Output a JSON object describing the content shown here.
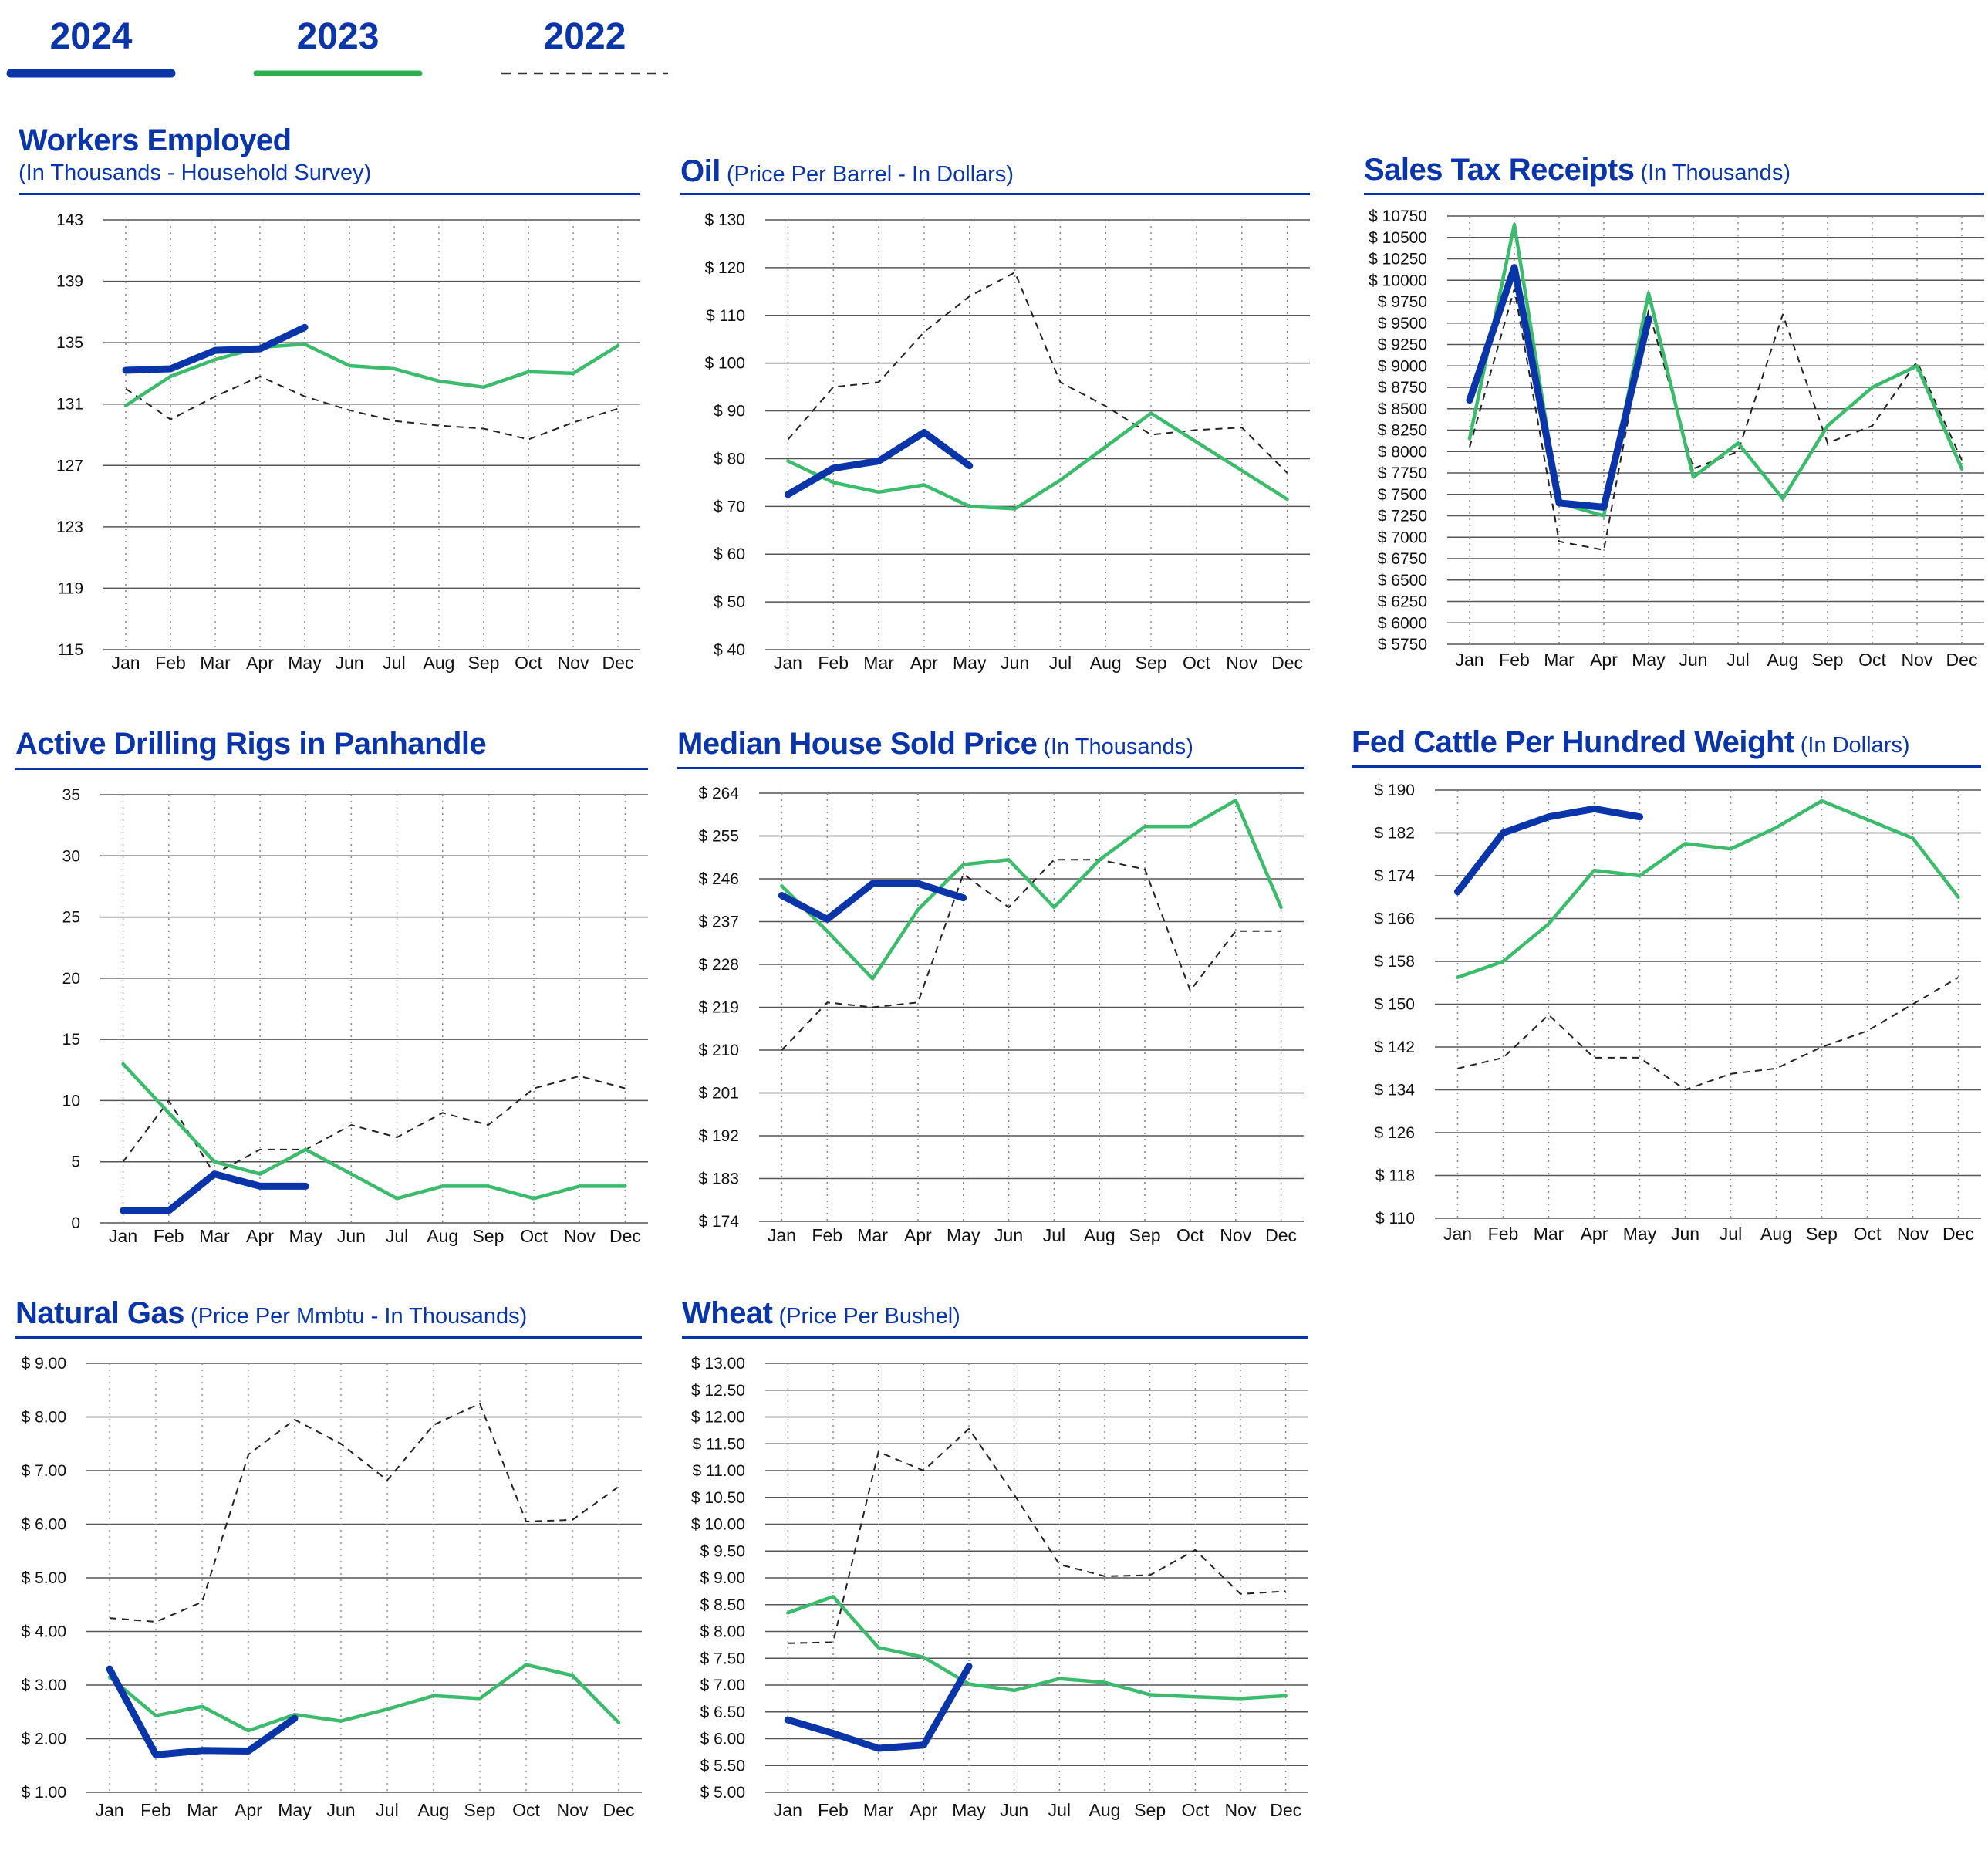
{
  "legend": {
    "items": [
      {
        "label": "2024",
        "color": "#0a35a8",
        "style": "solid-thick"
      },
      {
        "label": "2023",
        "color": "#2eae4f",
        "style": "solid"
      },
      {
        "label": "2022",
        "color": "#333333",
        "style": "dashed"
      }
    ]
  },
  "colors": {
    "y2024": "#0a35a8",
    "y2023": "#3dbb6c",
    "y2022": "#222222",
    "title": "#0a35a8",
    "grid": "#555555"
  },
  "months": [
    "Jan",
    "Feb",
    "Mar",
    "Apr",
    "May",
    "Jun",
    "Jul",
    "Aug",
    "Sep",
    "Oct",
    "Nov",
    "Dec"
  ],
  "chart_data": [
    {
      "id": "workers",
      "type": "line",
      "title": "Workers Employed",
      "subtitle": "(In Thousands - Household Survey)",
      "ylim": [
        115,
        143
      ],
      "yticks": [
        115,
        119,
        123,
        127,
        131,
        135,
        139,
        143
      ],
      "ytick_labels": [
        "115",
        "119",
        "123",
        "127",
        "131",
        "135",
        "139",
        "143"
      ],
      "series": [
        {
          "name": "2024",
          "values": [
            133.2,
            133.3,
            134.5,
            134.6,
            136.0
          ]
        },
        {
          "name": "2023",
          "values": [
            130.9,
            132.8,
            133.9,
            134.7,
            134.9,
            133.5,
            133.3,
            132.5,
            132.1,
            133.1,
            133.0,
            134.8
          ]
        },
        {
          "name": "2022",
          "values": [
            132.0,
            130.0,
            131.5,
            132.8,
            131.5,
            130.6,
            129.9,
            129.6,
            129.4,
            128.7,
            129.8,
            130.7
          ]
        }
      ]
    },
    {
      "id": "oil",
      "type": "line",
      "title": "Oil",
      "subtitle": "(Price Per Barrel - In Dollars)",
      "ylim": [
        40,
        130
      ],
      "yticks": [
        40,
        50,
        60,
        70,
        80,
        90,
        100,
        110,
        120,
        130
      ],
      "ytick_labels": [
        "$  40",
        "$  50",
        "$  60",
        "$  70",
        "$  80",
        "$  90",
        "$ 100",
        "$ 110",
        "$ 120",
        "$ 130"
      ],
      "series": [
        {
          "name": "2024",
          "values": [
            72.5,
            78.0,
            79.5,
            85.5,
            78.5
          ]
        },
        {
          "name": "2023",
          "values": [
            79.5,
            75.0,
            73.0,
            74.5,
            70.0,
            69.5,
            75.5,
            82.5,
            89.5,
            83.5,
            77.5,
            71.5
          ]
        },
        {
          "name": "2022",
          "values": [
            84.0,
            95.0,
            96.0,
            106.5,
            114.0,
            119.0,
            96.0,
            91.0,
            85.0,
            86.0,
            86.5,
            77.0
          ]
        }
      ]
    },
    {
      "id": "salestax",
      "type": "line",
      "title": "Sales Tax Receipts",
      "subtitle": "(In Thousands)",
      "ylim": [
        5750,
        10750
      ],
      "yticks": [
        5750,
        6000,
        6250,
        6500,
        6750,
        7000,
        7250,
        7500,
        7750,
        8000,
        8250,
        8500,
        8750,
        9000,
        9250,
        9500,
        9750,
        10000,
        10250,
        10500,
        10750
      ],
      "ytick_labels": [
        "$  5750",
        "$  6000",
        "$  6250",
        "$  6500",
        "$  6750",
        "$  7000",
        "$  7250",
        "$  7500",
        "$  7750",
        "$  8000",
        "$  8250",
        "$  8500",
        "$  8750",
        "$  9000",
        "$  9250",
        "$  9500",
        "$  9750",
        "$ 10000",
        "$ 10250",
        "$ 10500",
        "$ 10750"
      ],
      "series": [
        {
          "name": "2024",
          "values": [
            8600,
            10150,
            7400,
            7350,
            9550
          ]
        },
        {
          "name": "2023",
          "values": [
            8150,
            10650,
            7400,
            7250,
            9850,
            7700,
            8100,
            7450,
            8300,
            8750,
            9000,
            7800
          ]
        },
        {
          "name": "2022",
          "values": [
            8050,
            9900,
            6950,
            6850,
            9650,
            7800,
            8000,
            9600,
            8100,
            8300,
            9050,
            7900
          ]
        }
      ]
    },
    {
      "id": "rigs",
      "type": "line",
      "title": "Active Drilling Rigs in Panhandle",
      "subtitle": "",
      "ylim": [
        0,
        35
      ],
      "yticks": [
        0,
        5,
        10,
        15,
        20,
        25,
        30,
        35
      ],
      "ytick_labels": [
        "0",
        "5",
        "10",
        "15",
        "20",
        "25",
        "30",
        "35"
      ],
      "series": [
        {
          "name": "2024",
          "values": [
            1,
            1,
            4,
            3,
            3
          ]
        },
        {
          "name": "2023",
          "values": [
            13,
            9,
            5,
            4,
            6,
            4,
            2,
            3,
            3,
            2,
            3,
            3
          ]
        },
        {
          "name": "2022",
          "values": [
            5,
            10,
            4,
            6,
            6,
            8,
            7,
            9,
            8,
            11,
            12,
            11
          ]
        }
      ]
    },
    {
      "id": "house",
      "type": "line",
      "title": "Median House Sold Price",
      "subtitle": "(In Thousands)",
      "ylim": [
        174,
        264
      ],
      "yticks": [
        174,
        183,
        192,
        201,
        210,
        219,
        228,
        237,
        246,
        255,
        264
      ],
      "ytick_labels": [
        "$ 174",
        "$ 183",
        "$ 192",
        "$ 201",
        "$ 210",
        "$ 219",
        "$ 228",
        "$ 237",
        "$ 246",
        "$ 255",
        "$ 264"
      ],
      "series": [
        {
          "name": "2024",
          "values": [
            242.5,
            237.5,
            245.0,
            245.0,
            242.0
          ]
        },
        {
          "name": "2023",
          "values": [
            244.5,
            235.0,
            225.0,
            239.5,
            249.0,
            250.0,
            240.0,
            250.0,
            257.0,
            257.0,
            262.5,
            240.0
          ]
        },
        {
          "name": "2022",
          "values": [
            210.0,
            220.0,
            219.0,
            220.0,
            247.0,
            240.0,
            250.0,
            250.0,
            248.0,
            222.5,
            235.0,
            235.0
          ]
        }
      ]
    },
    {
      "id": "cattle",
      "type": "line",
      "title": "Fed Cattle Per Hundred Weight",
      "subtitle": "(In Dollars)",
      "ylim": [
        110,
        190
      ],
      "yticks": [
        110,
        118,
        126,
        134,
        142,
        150,
        158,
        166,
        174,
        182,
        190
      ],
      "ytick_labels": [
        "$ 110",
        "$ 118",
        "$ 126",
        "$ 134",
        "$ 142",
        "$ 150",
        "$ 158",
        "$ 166",
        "$ 174",
        "$ 182",
        "$ 190"
      ],
      "series": [
        {
          "name": "2024",
          "values": [
            171.0,
            182.0,
            185.0,
            186.5,
            185.0
          ]
        },
        {
          "name": "2023",
          "values": [
            155.0,
            158.0,
            165.0,
            175.0,
            174.0,
            180.0,
            179.0,
            183.0,
            188.0,
            184.5,
            181.0,
            170.0
          ]
        },
        {
          "name": "2022",
          "values": [
            138.0,
            140.0,
            148.0,
            140.0,
            140.0,
            134.0,
            137.0,
            138.0,
            142.0,
            145.0,
            150.0,
            155.0
          ]
        }
      ]
    },
    {
      "id": "natgas",
      "type": "line",
      "title": "Natural Gas",
      "subtitle": "(Price Per Mmbtu - In Thousands)",
      "ylim": [
        1,
        9
      ],
      "yticks": [
        1,
        2,
        3,
        4,
        5,
        6,
        7,
        8,
        9
      ],
      "ytick_labels": [
        "$ 1.00",
        "$ 2.00",
        "$ 3.00",
        "$ 4.00",
        "$ 5.00",
        "$ 6.00",
        "$ 7.00",
        "$ 8.00",
        "$ 9.00"
      ],
      "series": [
        {
          "name": "2024",
          "values": [
            3.3,
            1.7,
            1.78,
            1.77,
            2.38
          ]
        },
        {
          "name": "2023",
          "values": [
            3.15,
            2.43,
            2.6,
            2.15,
            2.45,
            2.33,
            2.55,
            2.8,
            2.75,
            3.38,
            3.18,
            2.3
          ]
        },
        {
          "name": "2022",
          "values": [
            4.25,
            4.18,
            4.55,
            7.3,
            7.95,
            7.5,
            6.82,
            7.85,
            8.25,
            6.05,
            6.08,
            6.7
          ]
        }
      ]
    },
    {
      "id": "wheat",
      "type": "line",
      "title": "Wheat",
      "subtitle": "(Price Per Bushel)",
      "ylim": [
        5,
        13
      ],
      "yticks": [
        5,
        5.5,
        6,
        6.5,
        7,
        7.5,
        8,
        8.5,
        9,
        9.5,
        10,
        10.5,
        11,
        11.5,
        12,
        12.5,
        13
      ],
      "ytick_labels": [
        "$  5.00",
        "$  5.50",
        "$  6.00",
        "$  6.50",
        "$  7.00",
        "$  7.50",
        "$  8.00",
        "$  8.50",
        "$  9.00",
        "$  9.50",
        "$ 10.00",
        "$ 10.50",
        "$ 11.00",
        "$ 11.50",
        "$ 12.00",
        "$ 12.50",
        "$ 13.00"
      ],
      "series": [
        {
          "name": "2024",
          "values": [
            6.35,
            6.1,
            5.82,
            5.88,
            7.35
          ]
        },
        {
          "name": "2023",
          "values": [
            8.35,
            8.65,
            7.7,
            7.52,
            7.02,
            6.9,
            7.12,
            7.05,
            6.82,
            6.78,
            6.75,
            6.8
          ]
        },
        {
          "name": "2022",
          "values": [
            7.78,
            7.8,
            11.35,
            11.0,
            11.78,
            10.55,
            9.25,
            9.03,
            9.05,
            9.52,
            8.7,
            8.75
          ]
        }
      ]
    }
  ]
}
